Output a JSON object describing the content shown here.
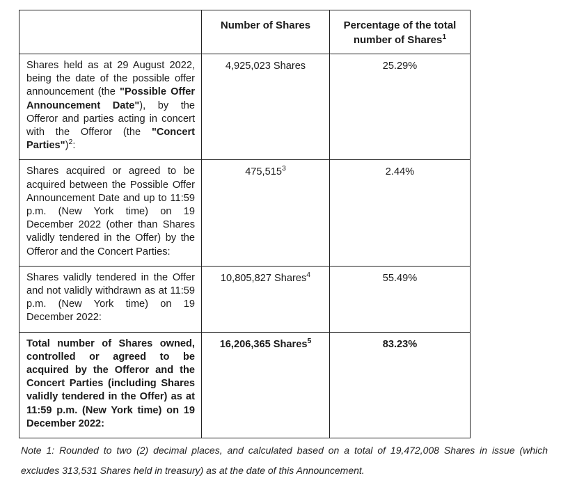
{
  "document": {
    "background_color": "#ffffff",
    "text_color": "#1b1b1b",
    "border_color": "#222222"
  },
  "table": {
    "header": {
      "col1": "",
      "col2": "Number of Shares",
      "col3_text": "Percentage of the total number of Shares",
      "col3_sup": "1"
    },
    "rows": [
      {
        "bold": false,
        "label_segments": [
          {
            "text": "Shares held as at 29 August 2022, being the date of the possible offer announcement (the ",
            "bold": false,
            "sup": false
          },
          {
            "text": "\"Possible Offer Announcement Date\"",
            "bold": true,
            "sup": false
          },
          {
            "text": "), by the Offeror and parties acting in concert with the Offeror (the ",
            "bold": false,
            "sup": false
          },
          {
            "text": "\"Concert Parties\"",
            "bold": true,
            "sup": false
          },
          {
            "text": ")",
            "bold": false,
            "sup": false
          },
          {
            "text": "2",
            "bold": false,
            "sup": true
          },
          {
            "text": ":",
            "bold": false,
            "sup": false
          }
        ],
        "shares_value": "4,925,023 Shares",
        "shares_sup": "",
        "percentage": "25.29%"
      },
      {
        "bold": false,
        "label_segments": [
          {
            "text": "Shares acquired or agreed to be acquired between the Possible Offer Announcement Date and up to 11:59 p.m. (New York time) on 19 December 2022 (other than Shares validly tendered in the Offer) by the Offeror and the Concert Parties:",
            "bold": false,
            "sup": false
          }
        ],
        "shares_value": "475,515",
        "shares_sup": "3",
        "percentage": "2.44%"
      },
      {
        "bold": false,
        "label_segments": [
          {
            "text": "Shares validly tendered in the Offer and not validly withdrawn as at 11:59 p.m. (New York time) on 19 December 2022:",
            "bold": false,
            "sup": false
          }
        ],
        "shares_value": "10,805,827 Shares",
        "shares_sup": "4",
        "percentage": "55.49%"
      },
      {
        "bold": true,
        "label_segments": [
          {
            "text": "Total number of Shares owned, controlled or agreed to be acquired by the Offeror and the Concert Parties (including Shares validly tendered in the Offer) as at 11:59 p.m. (New York time) on 19 December 2022:",
            "bold": true,
            "sup": false
          }
        ],
        "shares_value": "16,206,365 Shares",
        "shares_sup": "5",
        "percentage": "83.23%"
      }
    ]
  },
  "note": {
    "text": "Note 1: Rounded to two (2) decimal places, and calculated based on a total of 19,472,008 Shares in issue (which excludes 313,531 Shares held in treasury) as at the date of this Announcement."
  }
}
